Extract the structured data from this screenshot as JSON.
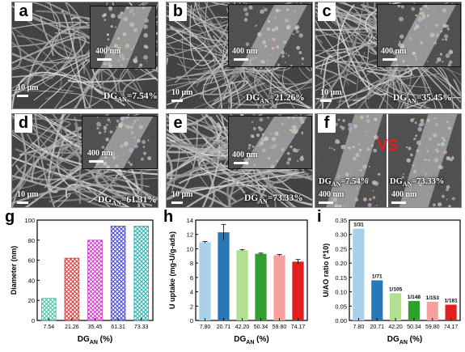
{
  "panels": {
    "a": {
      "label": "a",
      "sb_main": "10 μm",
      "sb_inset": "400 nm",
      "dg_prefix": "DG",
      "dg_sub": "AN",
      "dg_value": "=7.54%"
    },
    "b": {
      "label": "b",
      "sb_main": "10 μm",
      "sb_inset": "400 nm",
      "dg_prefix": "DG",
      "dg_sub": "AN",
      "dg_value": "=21.26%"
    },
    "c": {
      "label": "c",
      "sb_main": "10 μm",
      "sb_inset": "400 nm",
      "dg_prefix": "DG",
      "dg_sub": "AN",
      "dg_value": "=35.45%"
    },
    "d": {
      "label": "d",
      "sb_main": "10 μm",
      "sb_inset": "400 nm",
      "dg_prefix": "DG",
      "dg_sub": "AN",
      "dg_value": "=61.31%"
    },
    "e": {
      "label": "e",
      "sb_main": "10 μm",
      "sb_inset": "400 nm",
      "dg_prefix": "DG",
      "dg_sub": "AN",
      "dg_value": "=73.33%"
    },
    "f": {
      "label": "f",
      "vs": "VS",
      "left": {
        "dg_prefix": "DG",
        "dg_sub": "AN",
        "dg_value": "=7.54%",
        "sb": "400 nm"
      },
      "right": {
        "dg_prefix": "DG",
        "dg_sub": "AN",
        "dg_value": "=73.33%",
        "sb": "400 nm"
      }
    }
  },
  "chart_data": [
    {
      "id": "g",
      "type": "bar",
      "panel_label": "g",
      "categories": [
        "7.54",
        "21.26",
        "35.45",
        "61.31",
        "73.33"
      ],
      "values": [
        22,
        62,
        80,
        94,
        94
      ],
      "ylabel": "Diameter (nm)",
      "xlabel_main": "DG",
      "xlabel_sub": "AN",
      "xlabel_unit": " (%)",
      "ylim": [
        0,
        100
      ],
      "yticks": [
        0,
        20,
        40,
        60,
        80,
        100
      ],
      "colors": [
        "#40c0a0",
        "#e03030",
        "#d030d0",
        "#4040e0",
        "#20b0b0"
      ],
      "pattern": "crosshatch"
    },
    {
      "id": "h",
      "type": "bar",
      "panel_label": "h",
      "categories": [
        "7.80",
        "20.71",
        "42.20",
        "50.34",
        "59.80",
        "74.17"
      ],
      "values": [
        10.9,
        12.3,
        9.8,
        9.3,
        9.1,
        8.2
      ],
      "errors": [
        0.1,
        1.1,
        0.1,
        0.1,
        0.1,
        0.3
      ],
      "ylabel": "U uptake (mg-U/g-ads)",
      "xlabel_main": "DG",
      "xlabel_sub": "AN",
      "xlabel_unit": " (%)",
      "ylim": [
        0,
        14
      ],
      "yticks": [
        0,
        2,
        4,
        6,
        8,
        10,
        12,
        14
      ],
      "colors": [
        "#a8d0e8",
        "#2878b8",
        "#b0e090",
        "#30a030",
        "#f8a0a0",
        "#e02020"
      ]
    },
    {
      "id": "i",
      "type": "bar",
      "panel_label": "i",
      "categories": [
        "7.80",
        "20.71",
        "42.20",
        "50.34",
        "59.80",
        "74.17"
      ],
      "values": [
        0.32,
        0.14,
        0.095,
        0.068,
        0.065,
        0.055
      ],
      "data_labels": [
        "1/31",
        "1/71",
        "1/105",
        "1/148",
        "1/153",
        "1/181"
      ],
      "ylabel": "U/AO ratio (*10)",
      "xlabel_main": "DG",
      "xlabel_sub": "AN",
      "xlabel_unit": " (%)",
      "ylim": [
        0,
        0.35
      ],
      "yticks": [
        0.0,
        0.05,
        0.1,
        0.15,
        0.2,
        0.25,
        0.3,
        0.35
      ],
      "ytick_labels": [
        "0.00",
        "0.05",
        "0.10",
        "0.15",
        "0.20",
        "0.25",
        "0.30",
        "0.35"
      ],
      "colors": [
        "#a8d0e8",
        "#2878b8",
        "#b0e090",
        "#30a030",
        "#f8a0a0",
        "#e02020"
      ]
    }
  ]
}
